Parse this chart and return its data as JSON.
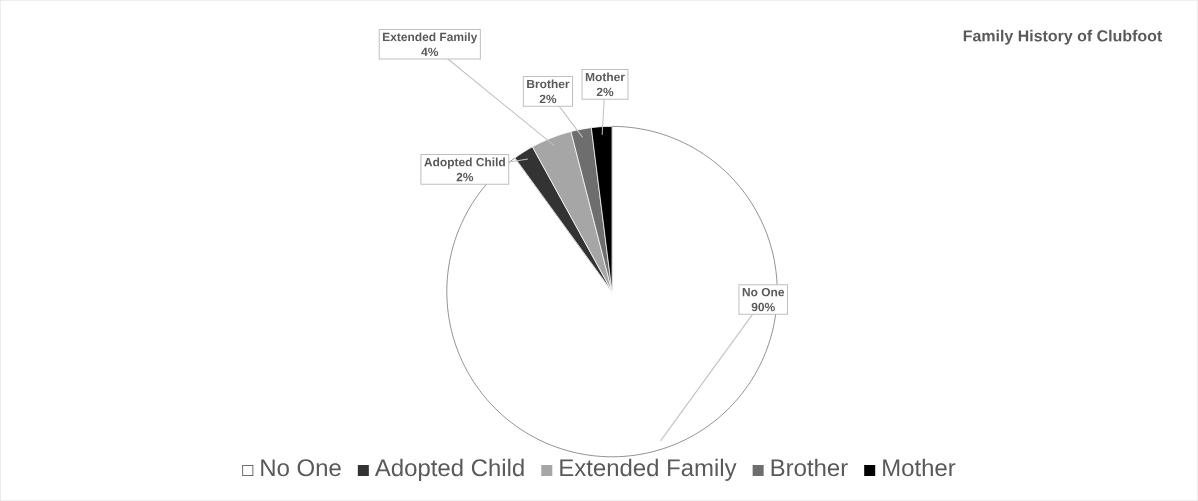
{
  "chart_data": {
    "type": "pie",
    "title": "Family History of Clubfoot",
    "categories": [
      "No One",
      "Adopted Child",
      "Extended Family",
      "Brother",
      "Mother"
    ],
    "values": [
      90,
      2,
      4,
      2,
      2
    ],
    "value_labels": [
      "90%",
      "2%",
      "4%",
      "2%",
      "2%"
    ],
    "colors": [
      "#ffffff",
      "#333333",
      "#a6a6a6",
      "#6e6e6e",
      "#000000"
    ],
    "legend": "bottom"
  }
}
